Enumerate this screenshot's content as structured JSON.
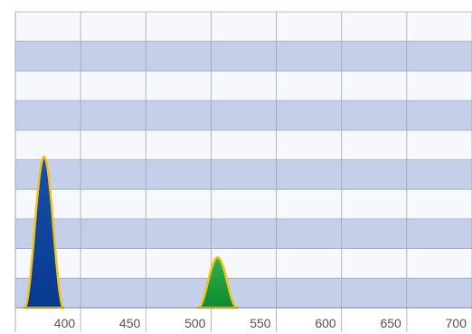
{
  "chart_data": {
    "type": "area",
    "title": "",
    "xlabel": "",
    "ylabel": "",
    "x_ticks": [
      "400",
      "450",
      "500",
      "550",
      "600",
      "650",
      "700"
    ],
    "xlim": [
      375,
      725
    ],
    "ylim": [
      0,
      10
    ],
    "grid": true,
    "legend": "none",
    "series": [
      {
        "peak_x": 397,
        "height": 5.1,
        "half_width": 15,
        "color_top": "#1b4fa8",
        "color_bottom": "#063a8f",
        "outline": "#f2c21b"
      },
      {
        "peak_x": 530,
        "height": 1.7,
        "half_width": 15,
        "color_top": "#34b04a",
        "color_bottom": "#0c8a2f",
        "outline": "#f2c21b"
      }
    ],
    "colors": {
      "band_light": "#f7f8fb",
      "band_dark": "#c4d0ea",
      "grid_line": "#9fa6b3",
      "tick_text": "#555555"
    }
  }
}
